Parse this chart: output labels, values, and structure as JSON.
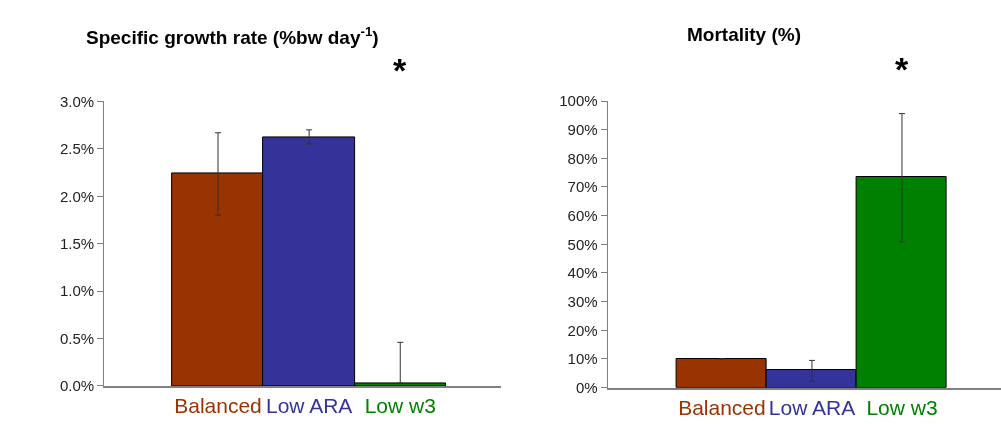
{
  "chart_data": [
    {
      "type": "bar",
      "title": "Specific growth rate (%bw day$^{-1}$)",
      "categories": [
        "Balanced",
        "Low ARA",
        "Low w3"
      ],
      "values": [
        2.24,
        2.62,
        0.03
      ],
      "colors": [
        "#993300",
        "#333399",
        "#008000"
      ],
      "errors": [
        [
          1.8,
          2.67
        ],
        [
          2.55,
          2.7
        ],
        [
          0.03,
          0.46
        ]
      ],
      "ylim": [
        0,
        3.0
      ],
      "yticks": [
        {
          "value": 0,
          "label": "0.0%"
        },
        {
          "value": 0.5,
          "label": "0.5%"
        },
        {
          "value": 1.0,
          "label": "1.0%"
        },
        {
          "value": 1.5,
          "label": "1.5%"
        },
        {
          "value": 2.0,
          "label": "2.0%"
        },
        {
          "value": 2.5,
          "label": "2.5%"
        },
        {
          "value": 3.0,
          "label": "3.0%"
        }
      ],
      "annotations": [
        "*"
      ]
    },
    {
      "type": "bar",
      "title": "Mortality (%)",
      "categories": [
        "Balanced",
        "Low ARA",
        "Low w3"
      ],
      "values": [
        10,
        6,
        73.4
      ],
      "colors": [
        "#993300",
        "#333399",
        "#008000"
      ],
      "errors": [
        null,
        [
          2.2,
          9.5
        ],
        [
          50.8,
          95.6
        ]
      ],
      "ylim": [
        0,
        100
      ],
      "yticks": [
        {
          "value": 0,
          "label": "0%"
        },
        {
          "value": 10,
          "label": "10%"
        },
        {
          "value": 20,
          "label": "20%"
        },
        {
          "value": 30,
          "label": "30%"
        },
        {
          "value": 40,
          "label": "40%"
        },
        {
          "value": 50,
          "label": "50%"
        },
        {
          "value": 60,
          "label": "60%"
        },
        {
          "value": 70,
          "label": "70%"
        },
        {
          "value": 80,
          "label": "80%"
        },
        {
          "value": 90,
          "label": "90%"
        },
        {
          "value": 100,
          "label": "100%"
        }
      ],
      "annotations": [
        "*"
      ]
    }
  ]
}
